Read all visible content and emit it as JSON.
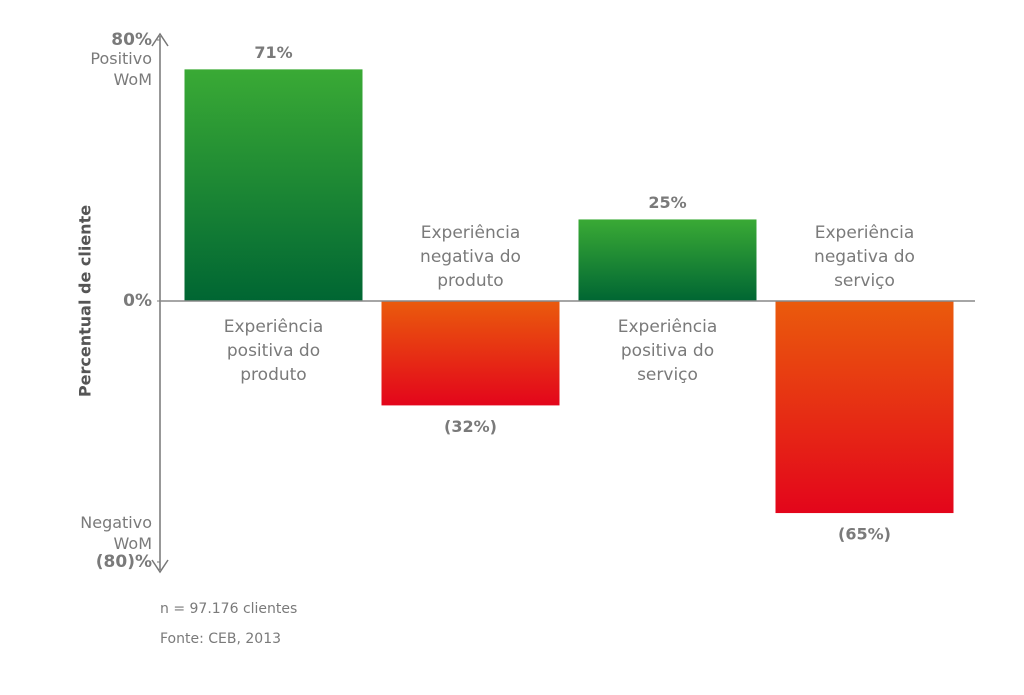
{
  "chart_data": {
    "type": "bar",
    "categories": [
      "Experiência positiva do produto",
      "Experiência negativa do produto",
      "Experiência positiva do serviço",
      "Experiência negativa do serviço"
    ],
    "values": [
      71,
      -32,
      25,
      -65
    ],
    "value_labels": [
      "71%",
      "(32%)",
      "25%",
      "(65%)"
    ],
    "color_positive": [
      "#3aaa35",
      "#006633"
    ],
    "color_negative": [
      "#ea5b0c",
      "#e3051b"
    ],
    "ylim": [
      -80,
      80
    ],
    "yticks": [
      {
        "value": 80,
        "label": "80%"
      },
      {
        "value": 0,
        "label": "0%"
      },
      {
        "value": -80,
        "label": "(80)%"
      }
    ],
    "y_top_annotation": "Positivo WoM",
    "y_bottom_annotation": "Negativo WoM",
    "ylabel": "Percentual de cliente",
    "notes": [
      "n = 97.176 clientes",
      "Fonte: CEB, 2013"
    ]
  }
}
